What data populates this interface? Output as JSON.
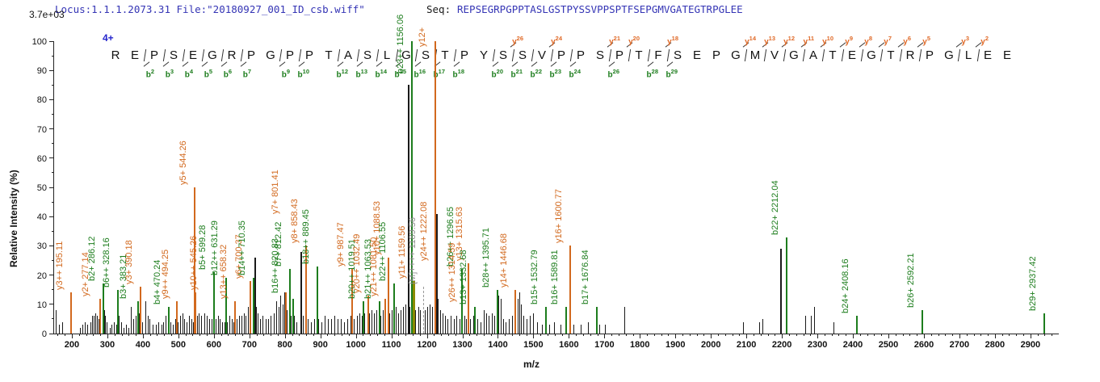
{
  "header": {
    "locus_file": "Locus:1.1.1.2073.31 File:\"20180927_001_ID_csb.wiff\"",
    "seq_label": "Seq:",
    "sequence": "REPSEGRPGPPTASLGSTPYSSVPPSPTFSEPGMVGATEGTRPGLEE",
    "charge_state": "4+",
    "intensity_scale": "3.7e+03"
  },
  "colors": {
    "b_ion": "#1d7d1d",
    "y_ion": "#d2691e",
    "unmatched_peak": "#1a1a1a",
    "b_and_y_peak": "#8b8b00",
    "precursor": "#9a9a9a",
    "header_blue": "#3535b5",
    "charge_blue": "#2424cc"
  },
  "sequence_annotation": {
    "residues": "REPSEGRPGPPTASLGSTPYSSVPPSPTFSEPGMVGATEGTRPGLEE",
    "b_ions": [
      2,
      3,
      4,
      5,
      6,
      7,
      9,
      10,
      12,
      13,
      14,
      15,
      16,
      17,
      18,
      20,
      21,
      22,
      23,
      24,
      26,
      28,
      29
    ],
    "y_ions": [
      26,
      24,
      21,
      20,
      18,
      14,
      13,
      12,
      11,
      10,
      9,
      8,
      7,
      6,
      5,
      3,
      2
    ]
  },
  "chart_data": {
    "type": "bar",
    "subtype": "ms2-peptide-fragmentation-spectrum",
    "xlabel": "m/z",
    "ylabel": "Relative  Intensity  (%)",
    "intensity_scale": "3.7e+03",
    "x_range": [
      150,
      2980
    ],
    "y_range": [
      0,
      100
    ],
    "x_label_start": 200,
    "x_label_end": 2900,
    "x_label_step": 100,
    "x_minor_step": 20,
    "y_label_step": 10,
    "y_minor_step": 5,
    "precursor": {
      "label": "[M]++++ 1189.56",
      "mz": 1189.56
    },
    "peaks_labeled": [
      {
        "mz": 195.11,
        "h": 14,
        "t": "y",
        "label": "y3++ 195.11"
      },
      {
        "mz": 277.14,
        "h": 12,
        "t": "y",
        "label": "y2+ 277.14",
        "label_mz": 268
      },
      {
        "mz": 286.12,
        "h": 17,
        "t": "b",
        "label": "b2+ 286.12"
      },
      {
        "mz": 328.16,
        "h": 15,
        "t": "b",
        "label": "b6++ 328.16"
      },
      {
        "mz": 383.21,
        "h": 11,
        "t": "b",
        "label": "b3+ 383.21",
        "label_mz": 376
      },
      {
        "mz": 390.18,
        "h": 16,
        "t": "y",
        "label": "y3+ 390.18"
      },
      {
        "mz": 470.24,
        "h": 9,
        "t": "b",
        "label": "b4+ 470.24"
      },
      {
        "mz": 494.25,
        "h": 11,
        "t": "y",
        "label": "y9++ 494.25"
      },
      {
        "mz": 544.26,
        "h": 50,
        "t": "y",
        "label": "y5+ 544.26"
      },
      {
        "mz": 545.26,
        "h": 14,
        "t": "y",
        "label": "y10++ 545.26",
        "label_mz": 572
      },
      {
        "mz": 599.28,
        "h": 21,
        "t": "b",
        "label": "b5+ 599.28"
      },
      {
        "mz": 631.29,
        "h": 19,
        "t": "b",
        "label": "b12++ 631.29"
      },
      {
        "mz": 658.32,
        "h": 11,
        "t": "y",
        "label": "y13++ 658.32"
      },
      {
        "mz": 700.37,
        "h": 18,
        "t": "y",
        "label": "y6+ 700.37"
      },
      {
        "mz": 710.35,
        "h": 19,
        "t": "b",
        "label": "b14++ 710.35"
      },
      {
        "mz": 801.41,
        "h": 14,
        "t": "y",
        "label": "y7+ 801.41",
        "label_bottom": 40,
        "label_mz": 803
      },
      {
        "mz": 812.42,
        "h": 22,
        "t": "b",
        "label": "b7+ 812.42"
      },
      {
        "mz": 820.83,
        "h": 12,
        "t": "b",
        "label": "b16++ 820.83",
        "label_bottom": 13,
        "label_mz": 803
      },
      {
        "mz": 858.43,
        "h": 30,
        "t": "y",
        "label": "y8+ 858.43"
      },
      {
        "mz": 889.45,
        "h": 23,
        "t": "b",
        "label": "b18++ 889.45"
      },
      {
        "mz": 987.47,
        "h": 22,
        "t": "y",
        "label": "y9+ 987.47"
      },
      {
        "mz": 1019.51,
        "h": 11,
        "t": "b",
        "label": "b20++ 1019.51"
      },
      {
        "mz": 1032.49,
        "h": 13,
        "t": "y",
        "label": "y20++ 1032.49"
      },
      {
        "mz": 1063.53,
        "h": 11,
        "t": "b",
        "label": "b21++ 1063.53"
      },
      {
        "mz": 1081.5,
        "h": 12,
        "t": "y",
        "label": "y21++ 1081.50"
      },
      {
        "mz": 1088.53,
        "h": 26,
        "t": "y",
        "label": "y10+ 1088.53"
      },
      {
        "mz": 1106.55,
        "h": 17,
        "t": "b",
        "label": "b22++ 1106.55"
      },
      {
        "mz": 1156.06,
        "h": 100,
        "t": "b",
        "label": "b23++ 1156.06",
        "label_bottom": 88
      },
      {
        "mz": 1159.56,
        "h": 18,
        "t": "by",
        "label": "y11+ 1159.56",
        "label_color": "y"
      },
      {
        "mz": 1189.56,
        "h": 16,
        "t": "M",
        "label": "[M]++++ 1189.56"
      },
      {
        "mz": 1222.08,
        "h": 100,
        "t": "y",
        "label": "y24++ 1222.08",
        "label_bottom": 24
      },
      {
        "mz": 1296.65,
        "h": 22,
        "t": "b",
        "label": "b26++ 1296.65"
      },
      {
        "mz": 1314.59,
        "h": 10,
        "t": "y",
        "label": "y26++ 1314.59",
        "label_mz": 1300
      },
      {
        "mz": 1315.63,
        "h": 24,
        "t": "y",
        "label": "y13+ 1315.63",
        "label_mz": 1322
      },
      {
        "mz": 1332.68,
        "h": 9,
        "t": "b",
        "label": "b13+ 1332.68"
      },
      {
        "mz": 1395.71,
        "h": 15,
        "t": "b",
        "label": "b28++ 1395.71"
      },
      {
        "mz": 1446.68,
        "h": 15,
        "t": "y",
        "label": "y14+ 1446.68"
      },
      {
        "mz": 1532.79,
        "h": 9,
        "t": "b",
        "label": "b15+ 1532.79"
      },
      {
        "mz": 1589.81,
        "h": 9,
        "t": "b",
        "label": "b16+ 1589.81"
      },
      {
        "mz": 1600.77,
        "h": 30,
        "t": "y",
        "label": "y16+ 1600.77"
      },
      {
        "mz": 1676.84,
        "h": 9,
        "t": "b",
        "label": "b17+ 1676.84"
      },
      {
        "mz": 2212.04,
        "h": 33,
        "t": "b",
        "label": "b22+ 2212.04"
      },
      {
        "mz": 2408.16,
        "h": 6,
        "t": "b",
        "label": "b24+ 2408.16"
      },
      {
        "mz": 2592.21,
        "h": 8,
        "t": "b",
        "label": "b26+ 2592.21"
      },
      {
        "mz": 2937.42,
        "h": 7,
        "t": "b",
        "label": "b29+ 2937.42"
      }
    ],
    "extra_labels": [
      {
        "mz": 1216,
        "text": "y12+",
        "t": "y",
        "bottom": 98
      }
    ],
    "peaks_unlabeled": [
      [
        155,
        8
      ],
      [
        163,
        3
      ],
      [
        172,
        4
      ],
      [
        198,
        2
      ],
      [
        222,
        2
      ],
      [
        230,
        3
      ],
      [
        237,
        4
      ],
      [
        243,
        3
      ],
      [
        252,
        4
      ],
      [
        258,
        6
      ],
      [
        262,
        6
      ],
      [
        266,
        7
      ],
      [
        270,
        6
      ],
      [
        274,
        5
      ],
      [
        280,
        5
      ],
      [
        290,
        8
      ],
      [
        294,
        6
      ],
      [
        299,
        4
      ],
      [
        306,
        2
      ],
      [
        312,
        3
      ],
      [
        318,
        4
      ],
      [
        326,
        3
      ],
      [
        333,
        6
      ],
      [
        339,
        4
      ],
      [
        346,
        2
      ],
      [
        352,
        3
      ],
      [
        359,
        2
      ],
      [
        367,
        9
      ],
      [
        372,
        5
      ],
      [
        379,
        6
      ],
      [
        388,
        7
      ],
      [
        398,
        4
      ],
      [
        408,
        11
      ],
      [
        414,
        6
      ],
      [
        419,
        5
      ],
      [
        428,
        3
      ],
      [
        436,
        3
      ],
      [
        444,
        4
      ],
      [
        452,
        3
      ],
      [
        458,
        4
      ],
      [
        464,
        6
      ],
      [
        471,
        5
      ],
      [
        477,
        4
      ],
      [
        484,
        3
      ],
      [
        492,
        5
      ],
      [
        499,
        4
      ],
      [
        505,
        6
      ],
      [
        511,
        7
      ],
      [
        517,
        5
      ],
      [
        524,
        4
      ],
      [
        530,
        6
      ],
      [
        536,
        5
      ],
      [
        541,
        4
      ],
      [
        552,
        6
      ],
      [
        558,
        7
      ],
      [
        565,
        6
      ],
      [
        572,
        7
      ],
      [
        579,
        6
      ],
      [
        586,
        5
      ],
      [
        593,
        5
      ],
      [
        605,
        5
      ],
      [
        611,
        6
      ],
      [
        617,
        5
      ],
      [
        624,
        4
      ],
      [
        630,
        4
      ],
      [
        637,
        4
      ],
      [
        644,
        6
      ],
      [
        650,
        5
      ],
      [
        656,
        4
      ],
      [
        663,
        5
      ],
      [
        670,
        6
      ],
      [
        677,
        6
      ],
      [
        684,
        7
      ],
      [
        690,
        6
      ],
      [
        696,
        9
      ],
      [
        703,
        8
      ],
      [
        714,
        26
      ],
      [
        719,
        9
      ],
      [
        724,
        7
      ],
      [
        730,
        5
      ],
      [
        738,
        6
      ],
      [
        745,
        5
      ],
      [
        752,
        5
      ],
      [
        760,
        6
      ],
      [
        768,
        7
      ],
      [
        776,
        11
      ],
      [
        782,
        9
      ],
      [
        788,
        13
      ],
      [
        794,
        10
      ],
      [
        799,
        14
      ],
      [
        806,
        8
      ],
      [
        817,
        6
      ],
      [
        826,
        6
      ],
      [
        833,
        4
      ],
      [
        843,
        28
      ],
      [
        851,
        6
      ],
      [
        865,
        5
      ],
      [
        874,
        4
      ],
      [
        883,
        5
      ],
      [
        893,
        5
      ],
      [
        903,
        4
      ],
      [
        912,
        6
      ],
      [
        921,
        5
      ],
      [
        930,
        5
      ],
      [
        939,
        6
      ],
      [
        948,
        5
      ],
      [
        957,
        5
      ],
      [
        966,
        4
      ],
      [
        975,
        5
      ],
      [
        984,
        6
      ],
      [
        993,
        5
      ],
      [
        1002,
        6
      ],
      [
        1009,
        7
      ],
      [
        1016,
        6
      ],
      [
        1024,
        7
      ],
      [
        1037,
        7
      ],
      [
        1044,
        8
      ],
      [
        1051,
        7
      ],
      [
        1058,
        8
      ],
      [
        1070,
        6
      ],
      [
        1076,
        8
      ],
      [
        1093,
        7
      ],
      [
        1100,
        8
      ],
      [
        1113,
        9
      ],
      [
        1119,
        7
      ],
      [
        1126,
        8
      ],
      [
        1133,
        9
      ],
      [
        1140,
        10
      ],
      [
        1146,
        85
      ],
      [
        1152,
        9
      ],
      [
        1168,
        8
      ],
      [
        1175,
        9
      ],
      [
        1181,
        8
      ],
      [
        1194,
        8
      ],
      [
        1201,
        9
      ],
      [
        1208,
        10
      ],
      [
        1214,
        9
      ],
      [
        1225,
        41
      ],
      [
        1231,
        12
      ],
      [
        1238,
        8
      ],
      [
        1245,
        7
      ],
      [
        1252,
        6
      ],
      [
        1259,
        5
      ],
      [
        1267,
        6
      ],
      [
        1275,
        5
      ],
      [
        1283,
        6
      ],
      [
        1291,
        5
      ],
      [
        1305,
        6
      ],
      [
        1311,
        5
      ],
      [
        1322,
        5
      ],
      [
        1330,
        6
      ],
      [
        1341,
        5
      ],
      [
        1352,
        4
      ],
      [
        1361,
        8
      ],
      [
        1367,
        7
      ],
      [
        1374,
        6
      ],
      [
        1382,
        7
      ],
      [
        1389,
        6
      ],
      [
        1397,
        12
      ],
      [
        1402,
        13
      ],
      [
        1407,
        12
      ],
      [
        1415,
        5
      ],
      [
        1422,
        4
      ],
      [
        1431,
        5
      ],
      [
        1440,
        6
      ],
      [
        1449,
        5
      ],
      [
        1456,
        12
      ],
      [
        1461,
        14
      ],
      [
        1466,
        10
      ],
      [
        1472,
        6
      ],
      [
        1480,
        5
      ],
      [
        1490,
        6
      ],
      [
        1500,
        7
      ],
      [
        1510,
        4
      ],
      [
        1523,
        3
      ],
      [
        1545,
        3
      ],
      [
        1558,
        4
      ],
      [
        1577,
        3
      ],
      [
        1612,
        3
      ],
      [
        1634,
        3
      ],
      [
        1653,
        4
      ],
      [
        1685,
        3
      ],
      [
        1702,
        3
      ],
      [
        1755,
        9
      ],
      [
        2090,
        4
      ],
      [
        2136,
        4
      ],
      [
        2146,
        5
      ],
      [
        2196,
        29
      ],
      [
        2265,
        6
      ],
      [
        2281,
        6
      ],
      [
        2291,
        9
      ],
      [
        2346,
        4
      ]
    ]
  }
}
